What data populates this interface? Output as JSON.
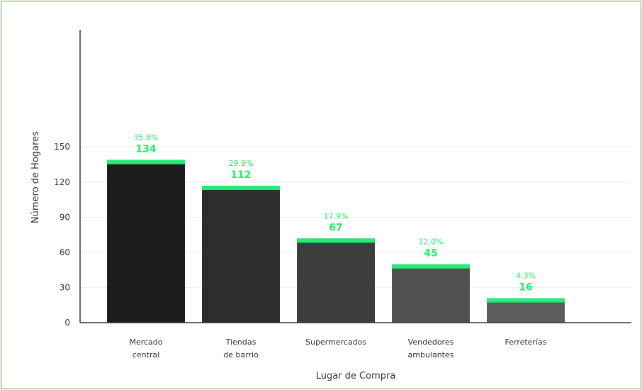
{
  "chart_data": {
    "type": "bar",
    "categories": [
      [
        "Mercado",
        "central"
      ],
      [
        "Tiendas",
        "de barrio"
      ],
      [
        "Supermercados"
      ],
      [
        "Vendedores",
        "ambulantes"
      ],
      [
        "Ferreterías"
      ]
    ],
    "values": [
      134,
      112,
      67,
      45,
      16
    ],
    "percent_labels": [
      "35.8%",
      "29.9%",
      "17.9%",
      "12.0%",
      "4.3%"
    ],
    "value_labels": [
      "134",
      "112",
      "67",
      "45",
      "16"
    ],
    "xlabel": "Lugar de Compra",
    "ylabel": "Número de Hogares",
    "yticks": [
      "0",
      "30",
      "60",
      "90",
      "120",
      "150"
    ],
    "ylim": [
      0,
      250
    ],
    "grid": true,
    "colors": {
      "bars": [
        "#1c1c1c",
        "#2d2d2d",
        "#3d3d3d",
        "#505050",
        "#5c5c5c"
      ],
      "highlight": "#22ee77",
      "label": "#22ee66",
      "axis": "#333333",
      "grid": "#eeeeee",
      "frame": "#6aa84f"
    }
  }
}
